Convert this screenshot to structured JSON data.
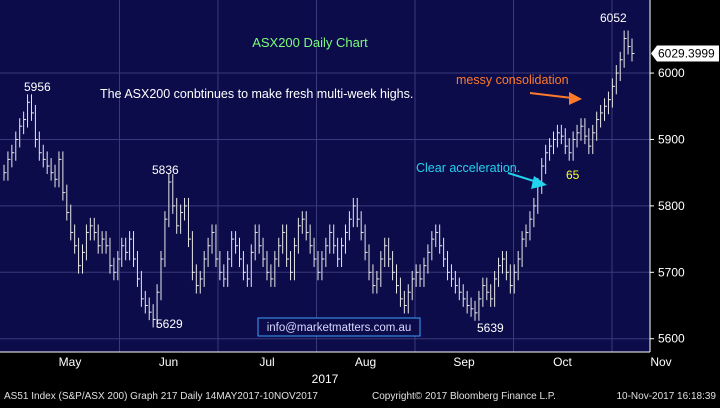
{
  "colors": {
    "background": "#000000",
    "plot_background": "#0c0c4a",
    "grid": "#3a3a7a",
    "price": "#e8e8e8",
    "title": "#7cfc7c",
    "orange": "#ff7a2a",
    "cyan": "#22d3ee",
    "yellow": "#ffff33",
    "watermark_border": "#3ba0ff",
    "watermark_text": "#d8d8ff",
    "footer_text": "#e0e0e0",
    "value_box": "#ffffff"
  },
  "chart_data": {
    "type": "line",
    "title": "ASX200 Daily Chart",
    "subtitle": "The ASX200 conbtinues to make fresh multi-week highs.",
    "year_label": "2017",
    "x_tick_labels": [
      "May",
      "Jun",
      "Jul",
      "Aug",
      "Sep",
      "Oct",
      "Nov"
    ],
    "ylim": [
      5580,
      6110
    ],
    "y_ticks": [
      5600,
      5700,
      5800,
      5900,
      6000
    ],
    "last_value_label": "6029.3999",
    "grid": true,
    "annotations": {
      "peak_left": "5956",
      "peak_jun": "5836",
      "low_jun": "5629",
      "low_sep": "5639",
      "peak_nov": "6052",
      "consolidation": "messy consolidation",
      "acceleration": "Clear acceleration.",
      "label_65": "65"
    },
    "watermark": "info@marketmatters.com.au",
    "footer": {
      "left": "AS51 Index (S&P/ASX 200) Graph 217  Daily 14MAY2017-10NOV2017",
      "copyright": "Copyright© 2017 Bloomberg Finance L.P.",
      "timestamp": "10-Nov-2017 16:18:39"
    },
    "series": [
      {
        "values": [
          5850,
          5870,
          5880,
          5900,
          5920,
          5930,
          5956,
          5940,
          5900,
          5880,
          5870,
          5860,
          5850,
          5840,
          5870,
          5820,
          5790,
          5760,
          5740,
          5710,
          5730,
          5760,
          5770,
          5760,
          5740,
          5750,
          5740,
          5710,
          5700,
          5720,
          5740,
          5730,
          5750,
          5720,
          5690,
          5660,
          5650,
          5640,
          5629,
          5670,
          5720,
          5780,
          5836,
          5800,
          5770,
          5790,
          5800,
          5750,
          5700,
          5680,
          5690,
          5720,
          5740,
          5760,
          5720,
          5700,
          5690,
          5720,
          5750,
          5740,
          5720,
          5700,
          5690,
          5730,
          5760,
          5740,
          5720,
          5700,
          5690,
          5720,
          5740,
          5760,
          5720,
          5700,
          5740,
          5770,
          5780,
          5760,
          5740,
          5720,
          5700,
          5720,
          5740,
          5760,
          5740,
          5720,
          5740,
          5760,
          5780,
          5800,
          5780,
          5760,
          5730,
          5700,
          5680,
          5690,
          5720,
          5740,
          5720,
          5700,
          5680,
          5660,
          5650,
          5670,
          5690,
          5700,
          5690,
          5710,
          5730,
          5750,
          5760,
          5740,
          5720,
          5700,
          5690,
          5680,
          5670,
          5660,
          5650,
          5645,
          5639,
          5660,
          5680,
          5670,
          5660,
          5690,
          5710,
          5720,
          5700,
          5680,
          5700,
          5720,
          5750,
          5760,
          5780,
          5800,
          5830,
          5860,
          5880,
          5890,
          5900,
          5910,
          5905,
          5890,
          5880,
          5900,
          5910,
          5920,
          5905,
          5890,
          5910,
          5930,
          5940,
          5950,
          5960,
          5980,
          6000,
          6020,
          6052,
          6040,
          6029.4
        ]
      }
    ]
  }
}
